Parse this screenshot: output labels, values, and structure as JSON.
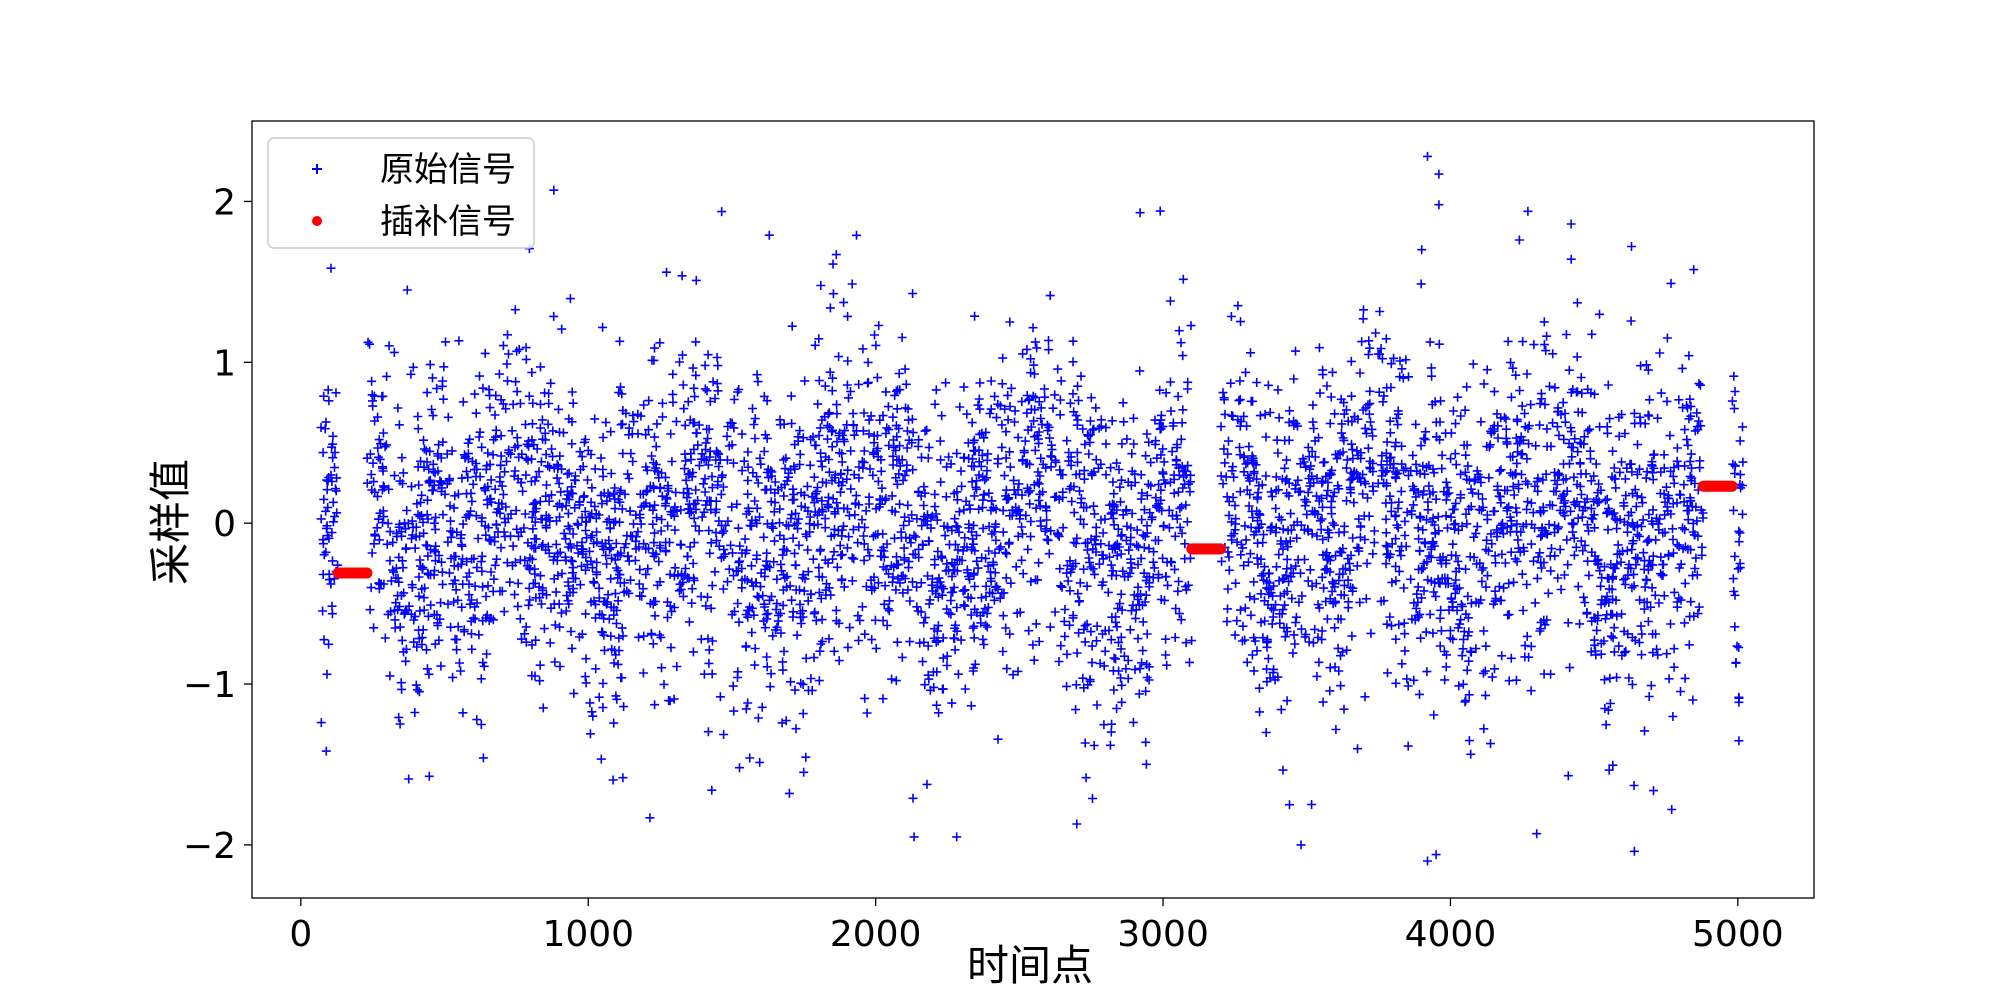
{
  "chart_data": {
    "type": "scatter",
    "title": "",
    "xlabel": "时间点",
    "ylabel": "采样值",
    "xlim": [
      -170,
      5265
    ],
    "ylim": [
      -2.33,
      2.5
    ],
    "xticks": [
      0,
      1000,
      2000,
      3000,
      4000,
      5000
    ],
    "xtick_labels": [
      "0",
      "1000",
      "2000",
      "3000",
      "4000",
      "5000"
    ],
    "yticks": [
      -2,
      -1,
      0,
      1,
      2
    ],
    "ytick_labels": [
      "−2",
      "−1",
      "0",
      "1",
      "2"
    ],
    "grid": false,
    "legend": {
      "position": "top-left",
      "entries": [
        {
          "label": "原始信号",
          "marker": "plus",
          "color": "#0000ff"
        },
        {
          "label": "插补信号",
          "marker": "circle",
          "color": "#ff0000"
        }
      ]
    },
    "series": [
      {
        "name": "原始信号",
        "marker": "plus",
        "color": "#0000ff",
        "approx_count": 4400,
        "value_summary": "noisy oscillating signal, mostly within -1.2 to 1.3, roughly centered near 0",
        "x_segments": [
          [
            70,
            130
          ],
          [
            230,
            3100
          ],
          [
            3200,
            4880
          ],
          [
            4980,
            5020
          ]
        ],
        "highlights": [
          {
            "x": 880,
            "y": 2.07
          },
          {
            "x": 3920,
            "y": 2.28
          },
          {
            "x": 3960,
            "y": 2.17
          },
          {
            "x": 3960,
            "y": 1.98
          },
          {
            "x": 2990,
            "y": 1.94
          },
          {
            "x": 2920,
            "y": 1.93
          },
          {
            "x": 4630,
            "y": 1.72
          },
          {
            "x": 1630,
            "y": 1.79
          },
          {
            "x": 4420,
            "y": 1.86
          },
          {
            "x": 4240,
            "y": 1.76
          },
          {
            "x": 3900,
            "y": 1.7
          },
          {
            "x": 3920,
            "y": -2.1
          },
          {
            "x": 3950,
            "y": -2.06
          },
          {
            "x": 4640,
            "y": -2.04
          },
          {
            "x": 3480,
            "y": -2.0
          },
          {
            "x": 2130,
            "y": -1.71
          },
          {
            "x": 2700,
            "y": -1.87
          },
          {
            "x": 4300,
            "y": -1.93
          },
          {
            "x": 1700,
            "y": -1.68
          },
          {
            "x": 1430,
            "y": -1.66
          },
          {
            "x": 4770,
            "y": -1.78
          },
          {
            "x": 4410,
            "y": -1.57
          },
          {
            "x": 3440,
            "y": -1.75
          }
        ]
      },
      {
        "name": "插补信号",
        "marker": "circle",
        "color": "#ff0000",
        "segments": [
          {
            "x_start": 130,
            "x_end": 230,
            "y": -0.31
          },
          {
            "x_start": 3100,
            "x_end": 3200,
            "y": -0.16
          },
          {
            "x_start": 4880,
            "x_end": 4980,
            "y": 0.23
          }
        ]
      }
    ]
  }
}
